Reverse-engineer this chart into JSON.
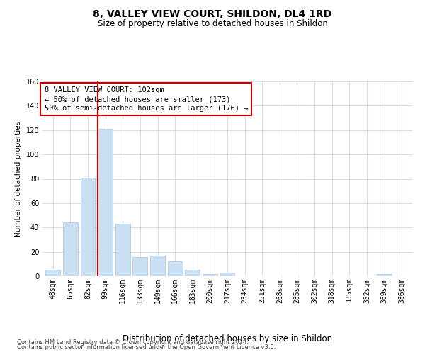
{
  "title": "8, VALLEY VIEW COURT, SHILDON, DL4 1RD",
  "subtitle": "Size of property relative to detached houses in Shildon",
  "xlabel": "Distribution of detached houses by size in Shildon",
  "ylabel": "Number of detached properties",
  "categories": [
    "48sqm",
    "65sqm",
    "82sqm",
    "99sqm",
    "116sqm",
    "133sqm",
    "149sqm",
    "166sqm",
    "183sqm",
    "200sqm",
    "217sqm",
    "234sqm",
    "251sqm",
    "268sqm",
    "285sqm",
    "302sqm",
    "318sqm",
    "335sqm",
    "352sqm",
    "369sqm",
    "386sqm"
  ],
  "values": [
    5,
    44,
    81,
    121,
    43,
    16,
    17,
    12,
    5,
    2,
    3,
    0,
    0,
    0,
    0,
    0,
    0,
    0,
    0,
    2,
    0
  ],
  "bar_color": "#c9dff2",
  "bar_edge_color": "#a8c4e0",
  "vline_color": "#cc0000",
  "vline_index": 3,
  "ylim": [
    0,
    160
  ],
  "yticks": [
    0,
    20,
    40,
    60,
    80,
    100,
    120,
    140,
    160
  ],
  "annotation_line1": "8 VALLEY VIEW COURT: 102sqm",
  "annotation_line2": "← 50% of detached houses are smaller (173)",
  "annotation_line3": "50% of semi-detached houses are larger (176) →",
  "annotation_box_color": "#cc0000",
  "footer_line1": "Contains HM Land Registry data © Crown copyright and database right 2024.",
  "footer_line2": "Contains public sector information licensed under the Open Government Licence v3.0.",
  "bg_color": "#ffffff",
  "grid_color": "#cdd8ea",
  "title_fontsize": 10,
  "subtitle_fontsize": 8.5,
  "ylabel_fontsize": 7.5,
  "xlabel_fontsize": 8.5,
  "tick_fontsize": 7,
  "annotation_fontsize": 7.5,
  "footer_fontsize": 6
}
